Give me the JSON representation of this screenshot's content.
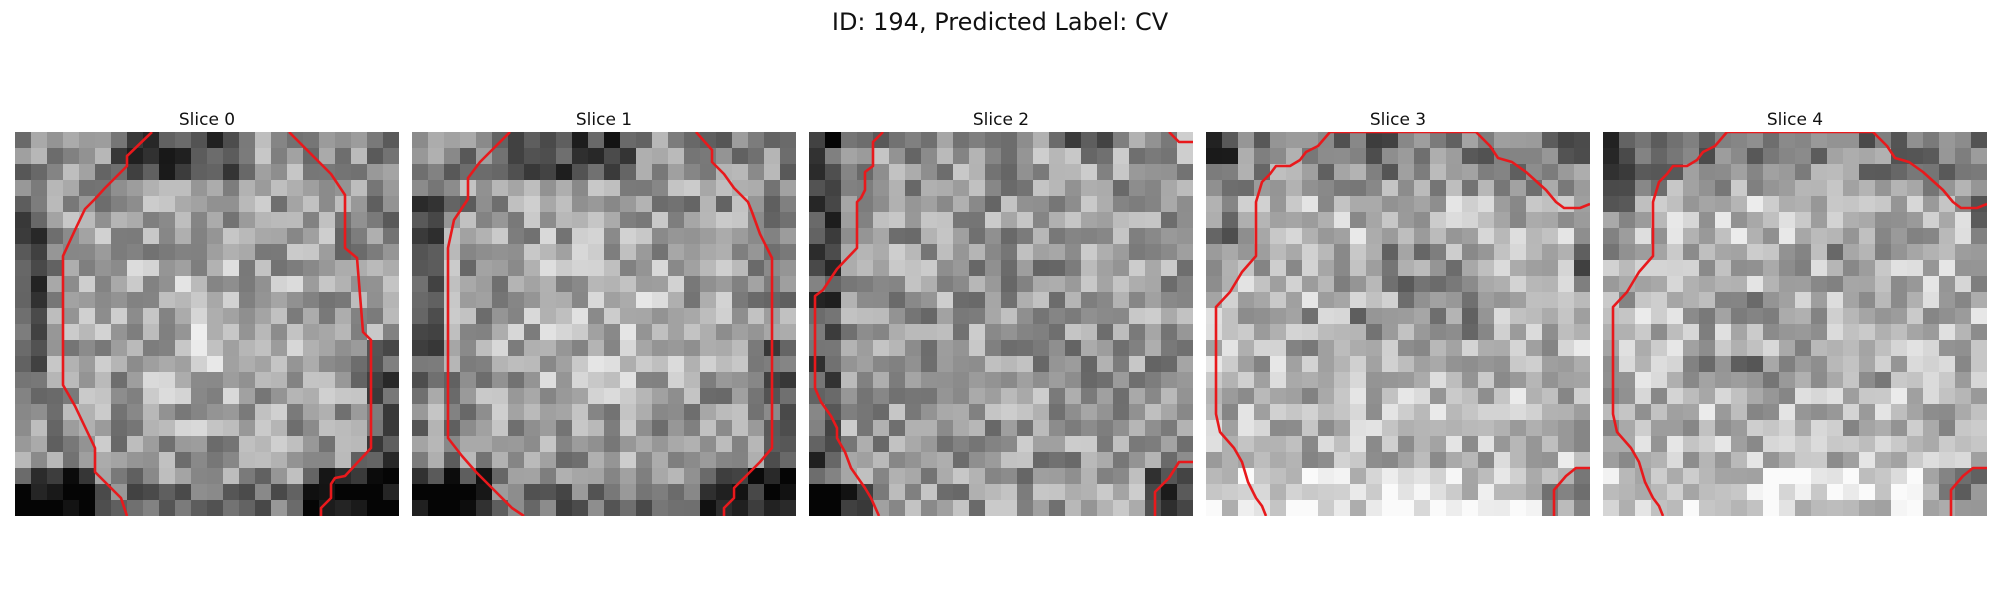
{
  "figure": {
    "title": "ID: 194, Predicted Label: CV",
    "colormap": "grayscale",
    "contour_color": "#e8191c"
  },
  "panels": [
    {
      "title": "Slice 0"
    },
    {
      "title": "Slice 1"
    },
    {
      "title": "Slice 2"
    },
    {
      "title": "Slice 3"
    },
    {
      "title": "Slice 4"
    }
  ]
}
